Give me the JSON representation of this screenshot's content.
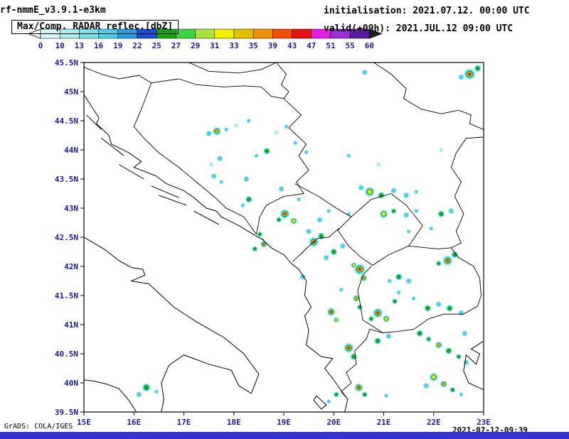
{
  "header": {
    "model": "rf-nmmE_v3.9.1-e3km",
    "init": "initialisation: 2021.07.12. 00:00 UTC",
    "product": "Max/Comp. RADAR reflec.[dbZ]",
    "valid": "valid(+09h): 2021.JUL.12 09:00 UTC"
  },
  "colorbar": {
    "tick_labels": [
      "0",
      "10",
      "13",
      "16",
      "19",
      "22",
      "25",
      "27",
      "29",
      "31",
      "33",
      "35",
      "39",
      "43",
      "47",
      "51",
      "55",
      "60"
    ],
    "colors": [
      "#d8f6f6",
      "#aeeef0",
      "#7fe3ea",
      "#4fd0e8",
      "#2a9fe0",
      "#1f4fd0",
      "#17a317",
      "#3fd43f",
      "#a8e23a",
      "#f0f000",
      "#e0c000",
      "#f09000",
      "#f05000",
      "#e41212",
      "#e020e0",
      "#9a30d8",
      "#5c1a9e"
    ],
    "under_color": "#ffffff",
    "over_color": "#1c1c1c"
  },
  "map": {
    "x_ticks": [
      "15E",
      "16E",
      "17E",
      "18E",
      "19E",
      "20E",
      "21E",
      "22E",
      "23E"
    ],
    "y_ticks": [
      "45.5N",
      "45N",
      "44.5N",
      "44N",
      "43.5N",
      "43N",
      "42.5N",
      "42N",
      "41.5N",
      "41N",
      "40.5N",
      "40N",
      "39.5N"
    ],
    "lon_range": [
      15,
      23
    ],
    "lat_range": [
      39.5,
      45.5
    ],
    "axis_label_color": "#1a1aa0"
  },
  "chart_data": {
    "type": "heatmap",
    "title": "Max/Comp. RADAR reflec.[dbZ]",
    "units": "dBZ",
    "levels": [
      0,
      10,
      13,
      16,
      19,
      22,
      25,
      27,
      29,
      31,
      33,
      35,
      39,
      43,
      47,
      51,
      55,
      60
    ],
    "cells_format": [
      "lon_deg_E",
      "lat_deg_N",
      "dbz",
      "radius_px"
    ],
    "cells": [
      [
        22.72,
        45.3,
        55,
        8
      ],
      [
        22.88,
        45.4,
        30,
        5
      ],
      [
        22.55,
        45.25,
        20,
        4
      ],
      [
        20.62,
        45.33,
        18,
        4
      ],
      [
        17.66,
        44.32,
        37,
        6
      ],
      [
        17.5,
        44.28,
        22,
        4
      ],
      [
        17.85,
        44.35,
        20,
        3
      ],
      [
        18.66,
        43.98,
        26,
        5
      ],
      [
        18.45,
        43.9,
        18,
        3
      ],
      [
        18.3,
        44.5,
        16,
        3
      ],
      [
        18.05,
        44.42,
        15,
        3
      ],
      [
        19.23,
        44.12,
        20,
        3
      ],
      [
        19.45,
        43.96,
        18,
        3
      ],
      [
        19.05,
        44.4,
        16,
        3
      ],
      [
        18.85,
        44.3,
        14,
        3
      ],
      [
        17.6,
        43.55,
        20,
        4
      ],
      [
        17.75,
        43.45,
        16,
        3
      ],
      [
        18.25,
        43.5,
        20,
        4
      ],
      [
        17.72,
        43.85,
        20,
        4
      ],
      [
        17.55,
        43.75,
        15,
        3
      ],
      [
        18.3,
        43.15,
        26,
        5
      ],
      [
        18.18,
        43.05,
        20,
        3
      ],
      [
        18.95,
        43.33,
        22,
        4
      ],
      [
        19.3,
        43.15,
        20,
        3
      ],
      [
        20.72,
        43.28,
        32,
        7
      ],
      [
        20.95,
        43.22,
        26,
        5
      ],
      [
        20.55,
        43.35,
        22,
        4
      ],
      [
        21.2,
        43.3,
        22,
        4
      ],
      [
        21.45,
        43.22,
        20,
        4
      ],
      [
        21.65,
        43.28,
        18,
        3
      ],
      [
        19.02,
        42.9,
        46,
        7
      ],
      [
        18.9,
        42.8,
        30,
        4
      ],
      [
        19.2,
        42.78,
        34,
        5
      ],
      [
        18.52,
        42.55,
        26,
        4
      ],
      [
        18.6,
        42.38,
        46,
        5
      ],
      [
        18.42,
        42.3,
        30,
        4
      ],
      [
        19.6,
        42.42,
        46,
        7
      ],
      [
        19.75,
        42.52,
        30,
        5
      ],
      [
        19.5,
        42.6,
        24,
        4
      ],
      [
        21.0,
        42.9,
        32,
        6
      ],
      [
        21.2,
        42.95,
        26,
        4
      ],
      [
        21.45,
        42.88,
        22,
        4
      ],
      [
        21.65,
        42.95,
        20,
        3
      ],
      [
        22.15,
        42.9,
        26,
        5
      ],
      [
        22.35,
        42.95,
        20,
        4
      ],
      [
        21.5,
        42.6,
        20,
        3
      ],
      [
        21.95,
        42.65,
        18,
        3
      ],
      [
        22.28,
        42.1,
        48,
        7
      ],
      [
        22.42,
        42.2,
        30,
        5
      ],
      [
        22.1,
        42.05,
        26,
        4
      ],
      [
        20.52,
        41.95,
        52,
        8
      ],
      [
        20.6,
        41.8,
        42,
        5
      ],
      [
        20.4,
        42.02,
        32,
        4
      ],
      [
        20.0,
        42.25,
        30,
        5
      ],
      [
        19.85,
        42.15,
        24,
        4
      ],
      [
        20.18,
        42.35,
        24,
        4
      ],
      [
        19.72,
        42.8,
        24,
        4
      ],
      [
        19.9,
        42.95,
        20,
        3
      ],
      [
        20.3,
        42.9,
        22,
        3
      ],
      [
        19.38,
        41.82,
        24,
        4
      ],
      [
        21.3,
        41.82,
        26,
        5
      ],
      [
        21.5,
        41.75,
        20,
        4
      ],
      [
        21.12,
        41.75,
        20,
        3
      ],
      [
        21.22,
        41.4,
        26,
        4
      ],
      [
        21.3,
        41.55,
        20,
        3
      ],
      [
        21.6,
        41.45,
        18,
        3
      ],
      [
        20.45,
        41.45,
        36,
        5
      ],
      [
        20.52,
        41.3,
        30,
        4
      ],
      [
        20.15,
        41.6,
        22,
        3
      ],
      [
        19.95,
        41.22,
        46,
        6
      ],
      [
        20.05,
        41.08,
        32,
        4
      ],
      [
        20.88,
        41.2,
        46,
        7
      ],
      [
        21.05,
        41.1,
        32,
        5
      ],
      [
        20.75,
        41.1,
        26,
        4
      ],
      [
        21.88,
        41.28,
        28,
        5
      ],
      [
        22.1,
        41.35,
        22,
        4
      ],
      [
        22.32,
        41.28,
        30,
        5
      ],
      [
        22.55,
        41.2,
        24,
        4
      ],
      [
        20.3,
        40.6,
        46,
        7
      ],
      [
        20.4,
        40.45,
        30,
        5
      ],
      [
        20.88,
        40.72,
        26,
        5
      ],
      [
        21.1,
        40.8,
        22,
        4
      ],
      [
        21.72,
        40.85,
        30,
        5
      ],
      [
        21.9,
        40.75,
        25,
        4
      ],
      [
        22.1,
        40.65,
        36,
        5
      ],
      [
        22.3,
        40.55,
        30,
        5
      ],
      [
        22.5,
        40.45,
        26,
        4
      ],
      [
        22.65,
        40.35,
        24,
        4
      ],
      [
        22.62,
        40.85,
        24,
        4
      ],
      [
        22.0,
        40.1,
        32,
        6
      ],
      [
        22.2,
        39.98,
        36,
        5
      ],
      [
        22.38,
        39.88,
        26,
        4
      ],
      [
        21.85,
        39.95,
        24,
        4
      ],
      [
        22.55,
        39.8,
        20,
        3
      ],
      [
        20.5,
        39.92,
        46,
        6
      ],
      [
        20.62,
        39.8,
        30,
        4
      ],
      [
        20.05,
        39.8,
        26,
        4
      ],
      [
        19.9,
        39.68,
        20,
        3
      ],
      [
        21.05,
        39.78,
        20,
        3
      ],
      [
        16.25,
        39.92,
        30,
        6
      ],
      [
        16.1,
        39.8,
        24,
        4
      ],
      [
        16.45,
        39.85,
        20,
        3
      ],
      [
        20.3,
        43.9,
        16,
        3
      ],
      [
        20.9,
        43.75,
        15,
        3
      ],
      [
        22.15,
        44.0,
        15,
        3
      ]
    ]
  },
  "footer": {
    "credit": "GrADS: COLA/IGES",
    "timestamp": "2021-07-12-09:39",
    "bar_color": "#3333cc"
  }
}
